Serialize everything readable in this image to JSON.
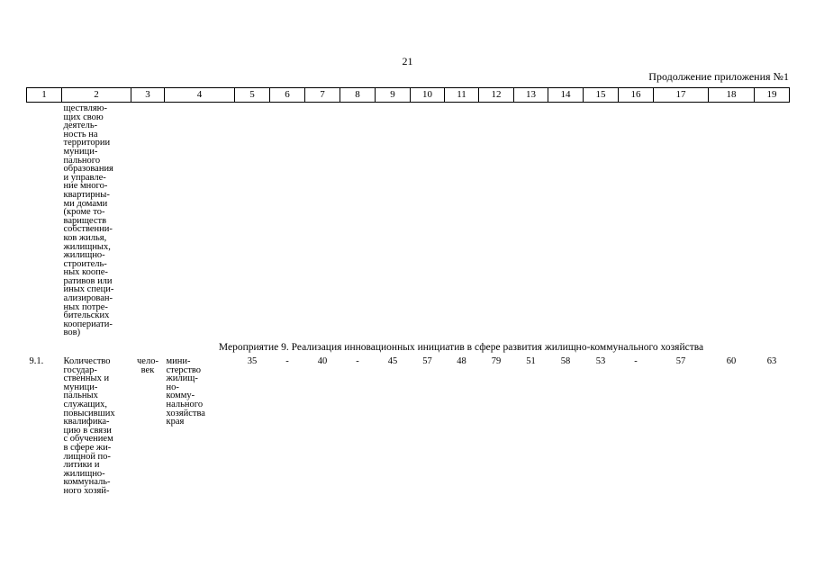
{
  "page_number": "21",
  "continuation_label": "Продолжение приложения №1",
  "header": [
    "1",
    "2",
    "3",
    "4",
    "5",
    "6",
    "7",
    "8",
    "9",
    "10",
    "11",
    "12",
    "13",
    "14",
    "15",
    "16",
    "17",
    "18",
    "19"
  ],
  "continued_text": "ществляю-\nщих свою\nдеятель-\nность на\nтерритории\nмуници-\nпального\nобразования\nи управле-\nние много-\nквартирны-\nми домами\n(кроме то-\nвариществ\nсобственни-\nков жилья,\nжилищных,\nжилищно-\nстроитель-\nных коопе-\nративов или\nиных специ-\nализирован-\nных потре-\nбительских\nкоопериати-\nвов)",
  "section_heading": "Мероприятие 9. Реализация инновационных инициатив в сфере развития жилищно-коммунального хозяйства",
  "row": {
    "number": "9.1.",
    "indicator": "Количество\nгосудар-\nственных и\nмуници-\nпальных\nслужащих,\nповысивших\nквалифика-\nцию в связи\nс обучением\nв сфере жи-\nлищной по-\nлитики и\nжилищно-\nкоммуналь-\nного хозяй-",
    "unit": "чело-\nвек",
    "responsible": "мини-\nстерство\nжилищ-\nно-\nкомму-\nнального\nхозяйства\nкрая",
    "values": [
      "35",
      "-",
      "40",
      "-",
      "45",
      "57",
      "48",
      "79",
      "51",
      "58",
      "53",
      "-",
      "57",
      "60",
      "63"
    ]
  }
}
